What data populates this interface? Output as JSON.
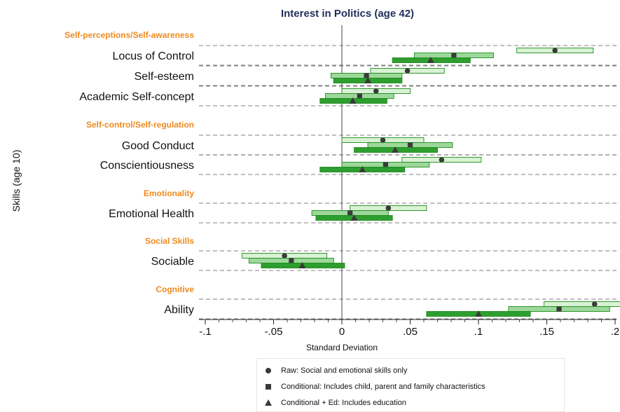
{
  "chart_data": {
    "type": "interval",
    "title": "Interest in Politics (age 42)",
    "xlabel": "Standard Deviation",
    "ylabel": "Skills (age 10)",
    "xlim": [
      -0.1,
      0.2
    ],
    "xticks": [
      -0.1,
      -0.05,
      0,
      0.05,
      0.1,
      0.15,
      0.2
    ],
    "xtick_labels": [
      "-.1",
      "-.05",
      "0",
      ".05",
      ".1",
      ".15",
      ".2"
    ],
    "grid": "horizontal dashed",
    "legend_position": "bottom",
    "series": [
      {
        "name": "Raw: Social and emotional skills only",
        "marker": "circle",
        "color": "#d9f2d4"
      },
      {
        "name": "Conditional: Includes child, parent and family characteristics",
        "marker": "square",
        "color": "#9dd89a"
      },
      {
        "name": "Conditional + Ed: Includes education",
        "marker": "triangle",
        "color": "#2e9e2e"
      }
    ],
    "groups": [
      {
        "name": "Self-perceptions/Self-awareness",
        "skills": [
          {
            "label": "Locus of Control",
            "estimates": [
              {
                "point": 0.156,
                "lo": 0.128,
                "hi": 0.184
              },
              {
                "point": 0.082,
                "lo": 0.053,
                "hi": 0.111
              },
              {
                "point": 0.065,
                "lo": 0.037,
                "hi": 0.094
              }
            ]
          },
          {
            "label": "Self-esteem",
            "estimates": [
              {
                "point": 0.048,
                "lo": 0.021,
                "hi": 0.075
              },
              {
                "point": 0.018,
                "lo": -0.008,
                "hi": 0.044
              },
              {
                "point": 0.019,
                "lo": -0.006,
                "hi": 0.044
              }
            ]
          },
          {
            "label": "Academic Self-concept",
            "estimates": [
              {
                "point": 0.025,
                "lo": 0.0,
                "hi": 0.05
              },
              {
                "point": 0.013,
                "lo": -0.012,
                "hi": 0.038
              },
              {
                "point": 0.008,
                "lo": -0.016,
                "hi": 0.033
              }
            ]
          }
        ]
      },
      {
        "name": "Self-control/Self-regulation",
        "skills": [
          {
            "label": "Good Conduct",
            "estimates": [
              {
                "point": 0.03,
                "lo": 0.0,
                "hi": 0.06
              },
              {
                "point": 0.05,
                "lo": 0.019,
                "hi": 0.081
              },
              {
                "point": 0.039,
                "lo": 0.009,
                "hi": 0.07
              }
            ]
          },
          {
            "label": "Conscientiousness",
            "estimates": [
              {
                "point": 0.073,
                "lo": 0.044,
                "hi": 0.102
              },
              {
                "point": 0.032,
                "lo": 0.0,
                "hi": 0.064
              },
              {
                "point": 0.015,
                "lo": -0.016,
                "hi": 0.046
              }
            ]
          }
        ]
      },
      {
        "name": "Emotionality",
        "skills": [
          {
            "label": "Emotional Health",
            "estimates": [
              {
                "point": 0.034,
                "lo": 0.006,
                "hi": 0.062
              },
              {
                "point": 0.006,
                "lo": -0.022,
                "hi": 0.034
              },
              {
                "point": 0.009,
                "lo": -0.019,
                "hi": 0.037
              }
            ]
          }
        ]
      },
      {
        "name": "Social Skills",
        "skills": [
          {
            "label": "Sociable",
            "estimates": [
              {
                "point": -0.042,
                "lo": -0.073,
                "hi": -0.011
              },
              {
                "point": -0.037,
                "lo": -0.068,
                "hi": -0.006
              },
              {
                "point": -0.029,
                "lo": -0.059,
                "hi": 0.002
              }
            ]
          }
        ]
      },
      {
        "name": "Cognitive",
        "skills": [
          {
            "label": "Ability",
            "estimates": [
              {
                "point": 0.185,
                "lo": 0.148,
                "hi": 0.222
              },
              {
                "point": 0.159,
                "lo": 0.122,
                "hi": 0.196
              },
              {
                "point": 0.1,
                "lo": 0.062,
                "hi": 0.138
              }
            ]
          }
        ]
      }
    ]
  }
}
